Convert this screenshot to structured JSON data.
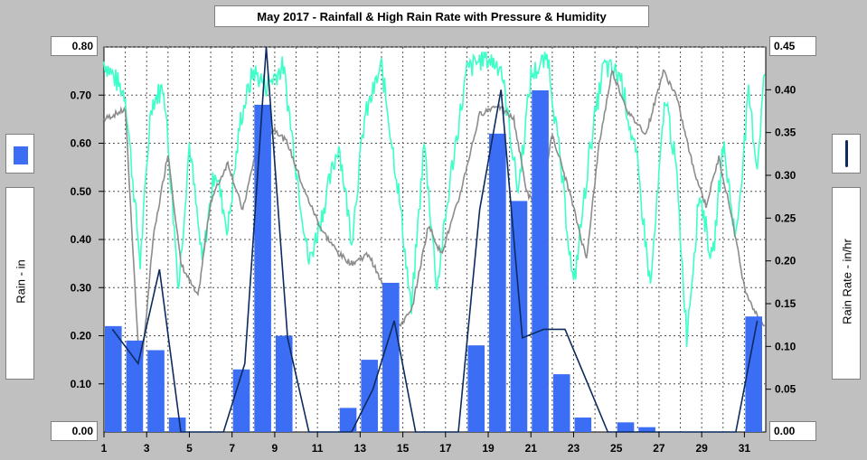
{
  "chart_data": {
    "type": "bar+line",
    "title": "May 2017 - Rainfall & High Rain Rate with Pressure & Humidity",
    "ylabel_left": "Rain - in",
    "ylabel_right": "Rain Rate - in/hr",
    "ylim_left": [
      0,
      0.8
    ],
    "ylim_right": [
      0,
      0.45
    ],
    "left_ticks": [
      "0.80",
      "0.70",
      "0.60",
      "0.50",
      "0.40",
      "0.30",
      "0.20",
      "0.10"
    ],
    "left_ticks_values": [
      0.8,
      0.7,
      0.6,
      0.5,
      0.4,
      0.3,
      0.2,
      0.1
    ],
    "left_zero_label": "0.00",
    "left_top_label": "0.80",
    "right_ticks": [
      "0.40",
      "0.35",
      "0.30",
      "0.25",
      "0.20",
      "0.15",
      "0.10",
      "0.05"
    ],
    "right_ticks_values": [
      0.4,
      0.35,
      0.3,
      0.25,
      0.2,
      0.15,
      0.1,
      0.05
    ],
    "right_zero_label": "0.00",
    "right_top_label": "0.45",
    "x_ticks": [
      "1",
      "3",
      "5",
      "7",
      "9",
      "11",
      "13",
      "15",
      "17",
      "19",
      "21",
      "23",
      "25",
      "27",
      "29",
      "31"
    ],
    "x_ticks_values": [
      1,
      3,
      5,
      7,
      9,
      11,
      13,
      15,
      17,
      19,
      21,
      23,
      25,
      27,
      29,
      31
    ],
    "x_range": [
      1,
      32
    ],
    "grid": true,
    "days": [
      1,
      2,
      3,
      4,
      5,
      6,
      7,
      8,
      9,
      10,
      11,
      12,
      13,
      14,
      15,
      16,
      17,
      18,
      19,
      20,
      21,
      22,
      23,
      24,
      25,
      26,
      27,
      28,
      29,
      30,
      31
    ],
    "rainfall_in": [
      0.22,
      0.19,
      0.17,
      0.03,
      0,
      0,
      0.13,
      0.68,
      0.2,
      0,
      0,
      0.05,
      0.15,
      0.31,
      0,
      0,
      0,
      0.18,
      0.62,
      0.48,
      0.71,
      0.12,
      0.03,
      0,
      0.02,
      0.01,
      0,
      0,
      0,
      0,
      0.24
    ],
    "rain_rate_points": [
      [
        1.4,
        0.12
      ],
      [
        2.6,
        0.08
      ],
      [
        3.6,
        0.19
      ],
      [
        4.6,
        0.0
      ],
      [
        6.6,
        0.0
      ],
      [
        7.6,
        0.08
      ],
      [
        8.6,
        0.45
      ],
      [
        9.6,
        0.11
      ],
      [
        10.6,
        0.0
      ],
      [
        12.6,
        0.0
      ],
      [
        13.6,
        0.05
      ],
      [
        14.6,
        0.13
      ],
      [
        15.6,
        0.0
      ],
      [
        17.6,
        0.0
      ],
      [
        18.6,
        0.26
      ],
      [
        19.6,
        0.4
      ],
      [
        20.6,
        0.11
      ],
      [
        21.6,
        0.12
      ],
      [
        22.6,
        0.12
      ],
      [
        23.6,
        0.06
      ],
      [
        24.6,
        0.0
      ],
      [
        30.6,
        0.0
      ],
      [
        31.6,
        0.13
      ]
    ],
    "series_colors": {
      "rainfall": "#3b6df5",
      "rain_rate": "#0d2b5e",
      "humidity": "#3dffc8",
      "pressure": "#8c8c8c"
    }
  },
  "legend": {
    "rainfall_swatch_color": "#3b6df5",
    "rain_rate_swatch_color": "#0d2b5e"
  }
}
